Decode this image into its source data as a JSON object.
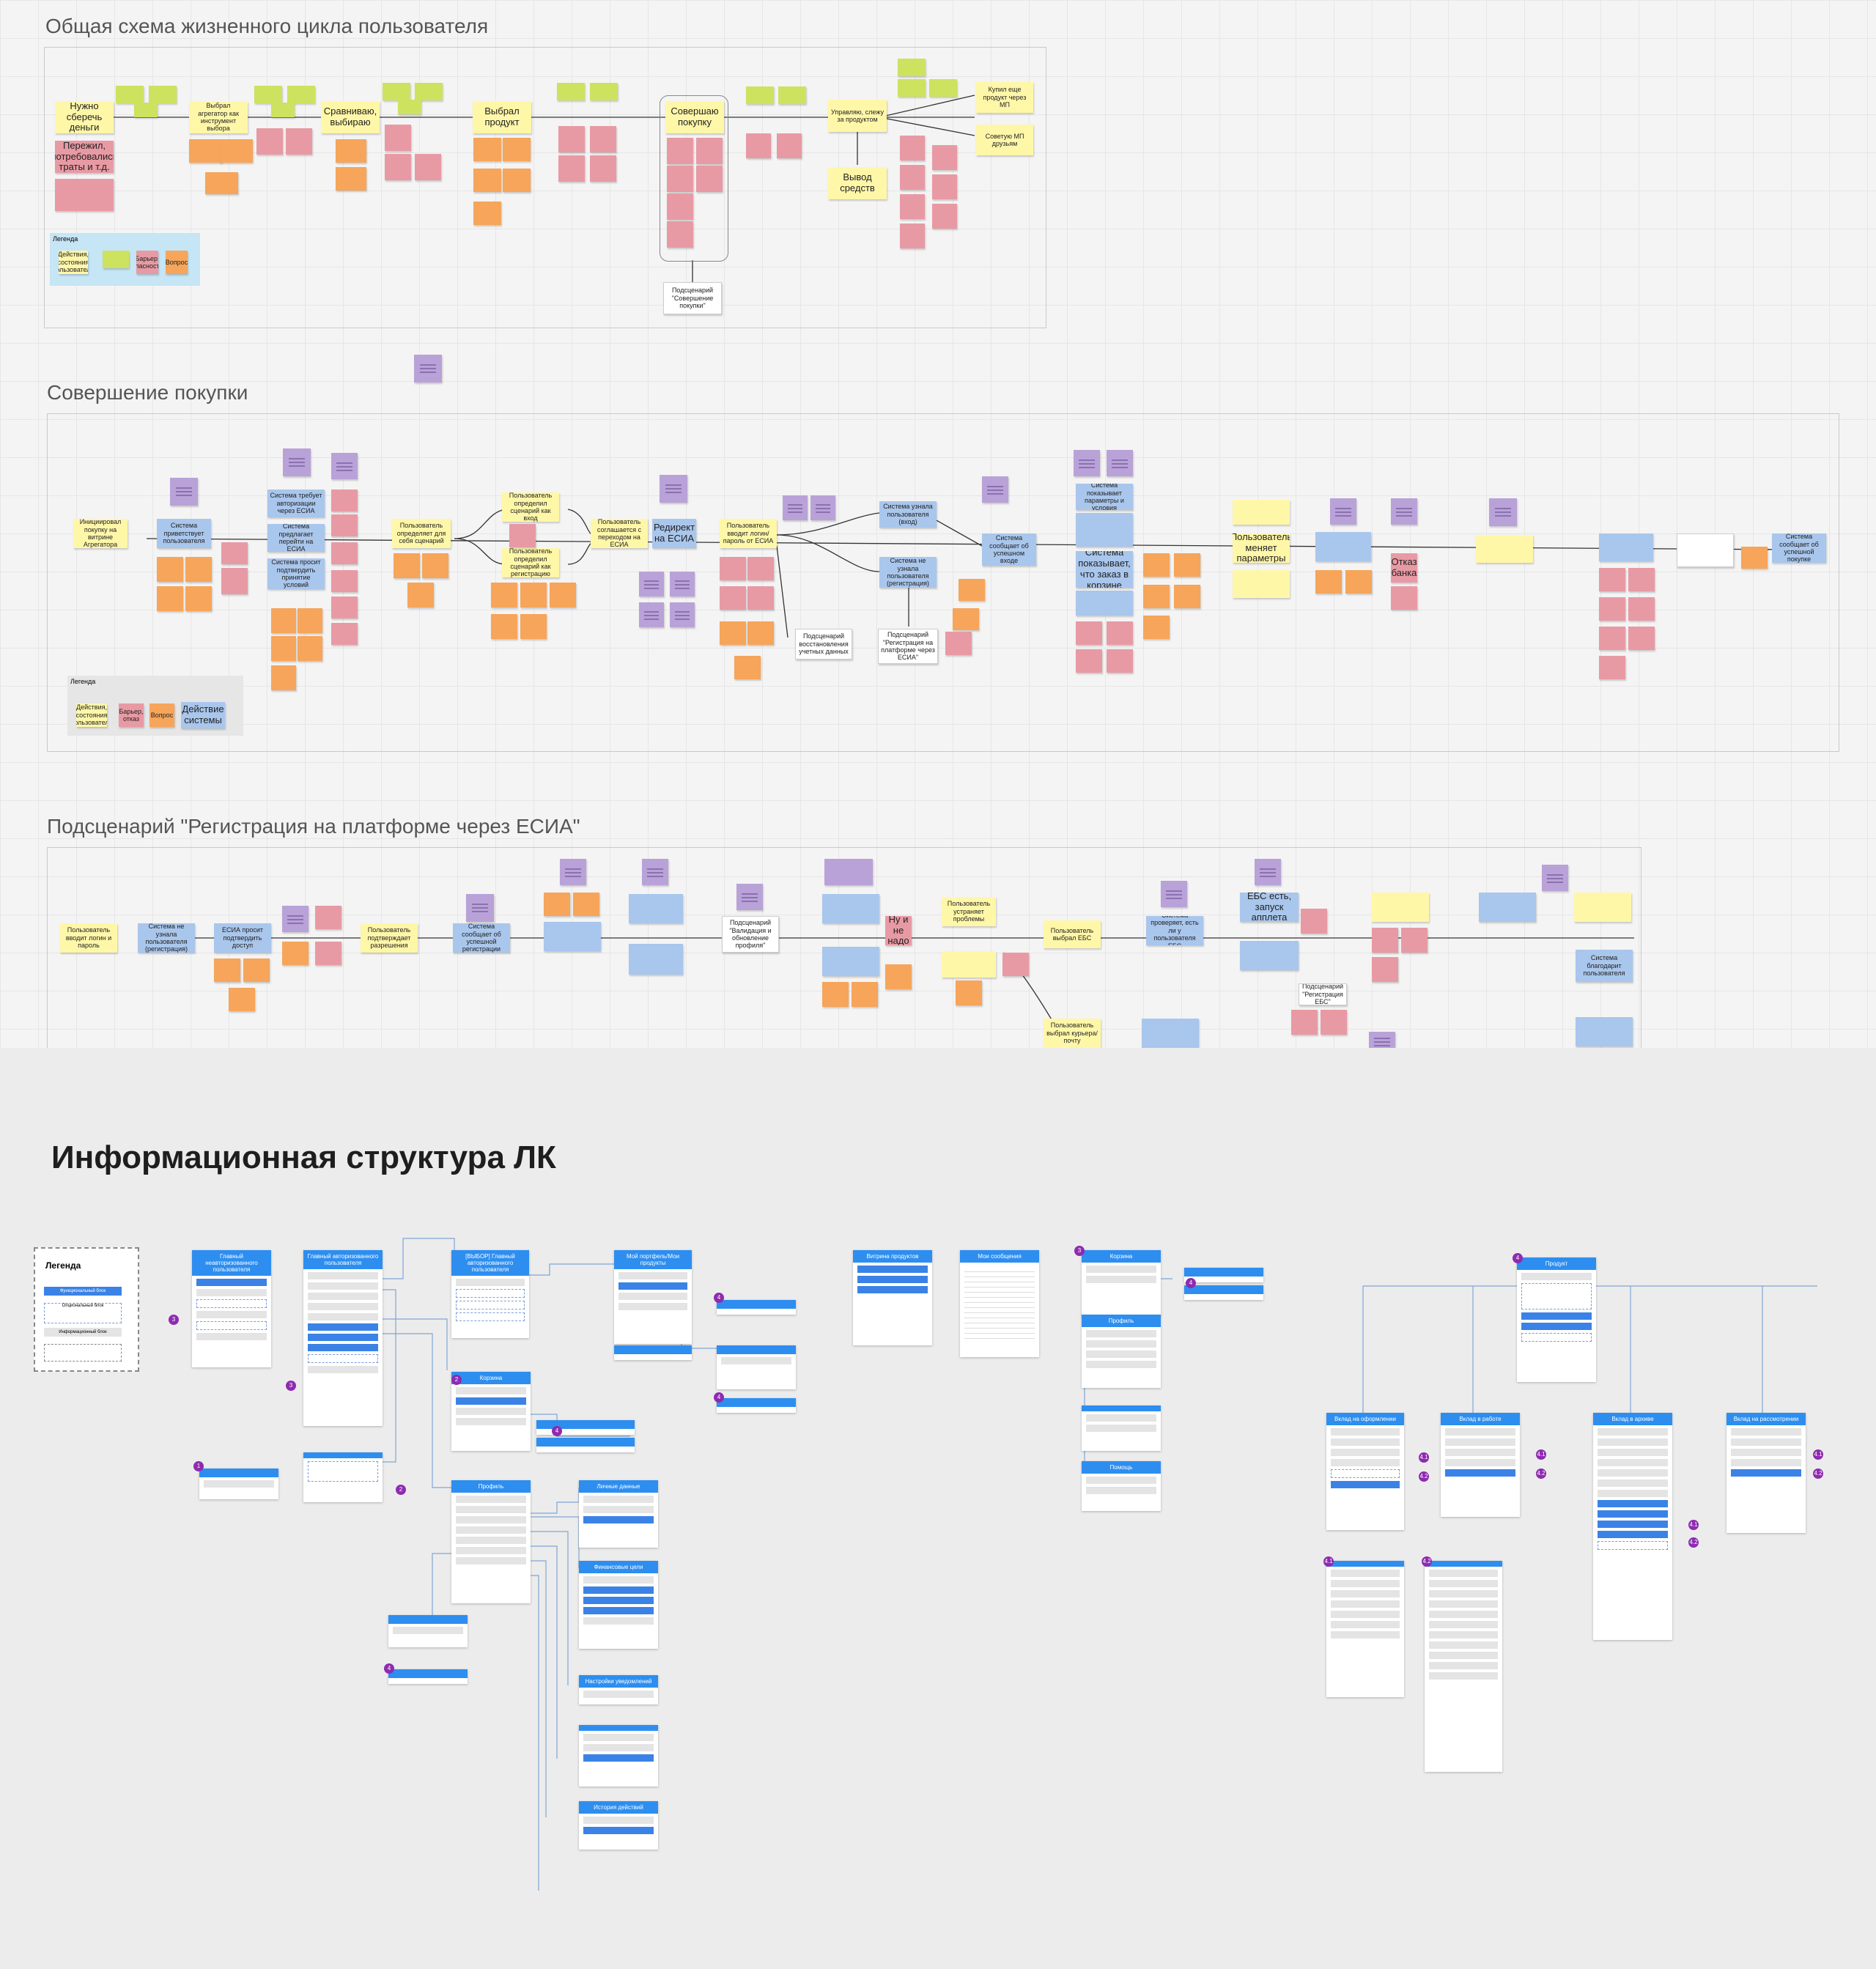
{
  "sections": {
    "lifecycle_title": "Общая схема жизненного цикла пользователя",
    "purchase_title": "Совершение покупки",
    "esia_title": "Подсценарий \"Регистрация на платформе через ЕСИА\"",
    "structure_title": "Информационная структура ЛК"
  },
  "lifecycle": {
    "steps": [
      "Нужно сберечь деньги",
      "Выбрал агрегатор как инструмент выбора",
      "Сравниваю, выбираю",
      "Выбрал продукт",
      "Совершаю покупку",
      "Управляю, слежу за продуктом",
      "Купил еще продукт через МП",
      "Советую МП друзьям",
      "Вывод средств"
    ],
    "pains": [
      "Пережил, потребовались траты и т.д."
    ],
    "subscenario": "Подсценарий \"Совершение покупки\"",
    "legend": {
      "title": "Легенда",
      "items": [
        "Действия, состояния пользователя",
        "Барьер, опасность",
        "Вопрос"
      ]
    }
  },
  "purchase": {
    "steps": [
      "Инициировал покупку на витрине Агрегатора",
      "Система приветствует пользователя",
      "Система требует авторизации через ЕСИА",
      "Система предлагает перейти на ЕСИА",
      "Система просит подтвердить принятие условий",
      "Пользователь определяет для себя сценарий",
      "Пользователь определил сценарий как вход",
      "Пользователь определил сценарий как регистрацию",
      "Пользователь соглашается с переходом на ЕСИА",
      "Редирект на ЕСИА",
      "Пользователь вводит логин/пароль от ЕСИА",
      "Система узнала пользователя (вход)",
      "Система не узнала пользователя (регистрация)",
      "Система сообщает об успешном входе",
      "Система показывает параметры и условия",
      "Система показывает, что заказ в корзине",
      "Пользователь меняет параметры",
      "Отказ банка",
      "Система сообщает об успешной покупке"
    ],
    "subscenarios": [
      "Подсценарий \"Регистрация на платформе через ЕСИА\"",
      "Подсценарий восстановления учетных данных"
    ],
    "legend": {
      "title": "Легенда",
      "items": [
        "Действия, состояния пользователя",
        "Барьер, отказ",
        "Вопрос",
        "Действие системы"
      ]
    }
  },
  "esia": {
    "steps": [
      "Пользователь вводит логин и пароль",
      "Система не узнала пользователя (регистрация)",
      "ЕСИА просит подтвердить доступ",
      "Пользователь подтверждает разрешения",
      "Система сообщает об успешной регистрации",
      "Подсценарий \"Валидация и обновление профиля\"",
      "Ну и не надо",
      "Пользователь устраняет проблемы",
      "Пользователь выбрал ЕБС",
      "Система проверяет, есть ли у пользователя ЕБС",
      "ЕБС есть, запуск апплета",
      "Подсценарий \"Регистрация ЕБС\"",
      "Пользователь выбрал курьера/почту",
      "Система благодарит пользователя"
    ]
  },
  "structure": {
    "legend": {
      "title": "Легенда",
      "items": [
        "Функциональный блок",
        "Опциональный блок",
        "Информационный блок"
      ]
    },
    "cards": [
      "Главный неавторизованного пользователя",
      "Главный авторизованного пользователя",
      "[ВЫБОР] Главный авторизованного пользователя",
      "Мой портфель/Мои продукты",
      "Витрина продуктов",
      "Мои сообщения",
      "Корзина",
      "Профиль",
      "Помощь",
      "Продукт",
      "Личные данные",
      "Финансовые цели",
      "Настройки уведомлений",
      "История действий",
      "Вклад на оформлении",
      "Вклад в работе",
      "Вклад в архиве",
      "Вклад на рассмотрении"
    ],
    "badges": [
      "1",
      "2",
      "3",
      "4",
      "4.1",
      "4.2"
    ]
  },
  "colors": {
    "sticky_yellow": "#fff7a8",
    "sticky_green": "#cde25f",
    "sticky_red": "#e89aa4",
    "sticky_orange": "#f6a55a",
    "sticky_blue": "#a9c6ec",
    "sticky_purple": "#b9a2d8",
    "card_header": "#2d8ef0",
    "badge": "#8e2bb0"
  }
}
